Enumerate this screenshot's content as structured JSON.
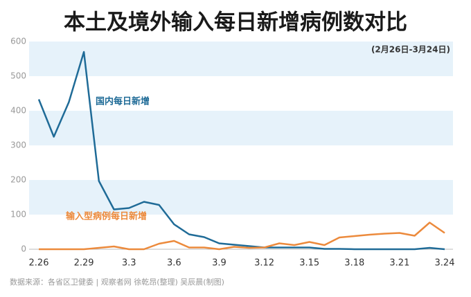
{
  "chart_data": {
    "type": "line",
    "title": "本土及境外输入每日新增病例数对比",
    "subtitle": "(2月26日-3月24日)",
    "source": "数据来源：各省区卫健委  |  观察者网 徐乾昂(整理) 吴辰晨(制图)",
    "categories": [
      "2.26",
      null,
      null,
      "2.29",
      null,
      null,
      "3.3",
      null,
      null,
      "3.6",
      null,
      null,
      "3.9",
      null,
      null,
      "3.12",
      null,
      null,
      "3.15",
      null,
      null,
      "3.18",
      null,
      null,
      "3.21",
      null,
      null,
      "3.24"
    ],
    "series": [
      {
        "name": "国内每日新增",
        "color": "#1f6b97",
        "values": [
          433,
          325,
          425,
          570,
          197,
          115,
          119,
          137,
          128,
          72,
          43,
          35,
          17,
          13,
          9,
          5,
          5,
          5,
          5,
          1,
          1,
          0,
          0,
          0,
          0,
          0,
          4,
          0
        ]
      },
      {
        "name": "输入型病例每日新增",
        "color": "#ec8a3c",
        "values": [
          0,
          0,
          0,
          0,
          4,
          8,
          0,
          0,
          16,
          24,
          5,
          5,
          0,
          7,
          4,
          5,
          17,
          12,
          21,
          12,
          34,
          38,
          42,
          45,
          47,
          39,
          77,
          47
        ]
      }
    ],
    "ylim": [
      0,
      600
    ],
    "yticks": [
      0,
      100,
      200,
      300,
      400,
      500,
      600
    ],
    "grid": "bands"
  }
}
